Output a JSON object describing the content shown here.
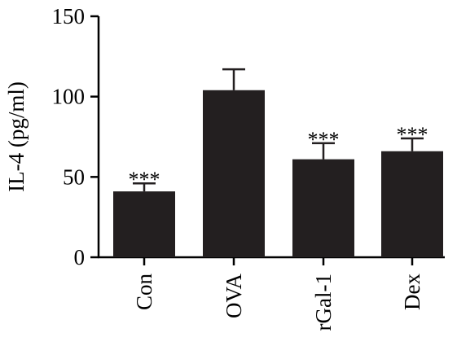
{
  "chart_data": {
    "type": "bar",
    "categories": [
      "Con",
      "OVA",
      "rGal-1",
      "Dex"
    ],
    "values": [
      41,
      104,
      61,
      66
    ],
    "errors": [
      5,
      13,
      10,
      8
    ],
    "annotations": [
      "***",
      "",
      "***",
      "***"
    ],
    "ylabel": "IL-4 (pg/ml)",
    "xlabel": "",
    "ylim": [
      0,
      150
    ],
    "yticks": [
      0,
      50,
      100,
      150
    ],
    "grid": false,
    "bar_color": "#231f20",
    "axis_color": "#000000"
  }
}
